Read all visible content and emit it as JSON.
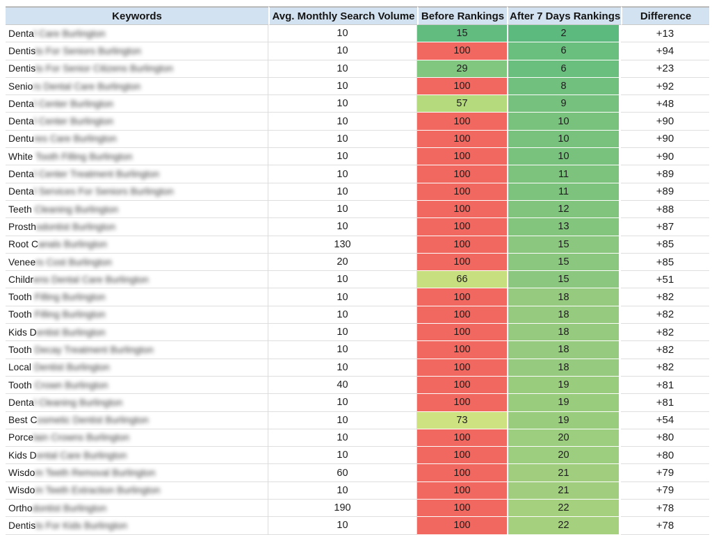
{
  "header": {
    "columns": [
      "Keywords",
      "Avg. Monthly Search Volume",
      "Before Rankings",
      "After 7 Days Rankings",
      "Difference"
    ]
  },
  "colors": {
    "header_bg": "#d3e2f0",
    "gridline": "#dedede",
    "ranking_red": "#f0685f",
    "ranking_green_strong": "#5cba7e",
    "ranking_green_light": "#a5d07e",
    "ranking_yellow_green": "#cfe282"
  },
  "table": {
    "rows": [
      {
        "keyword_visible": "Denta",
        "keyword_blurred": "l Care Burlington",
        "volume": "10",
        "before": "15",
        "after": "2",
        "difference": "+13",
        "before_color": "#62bc80",
        "after_color": "#5cba7e"
      },
      {
        "keyword_visible": "Dentis",
        "keyword_blurred": "ts For Seniors Burlington",
        "volume": "10",
        "before": "100",
        "after": "6",
        "difference": "+94",
        "before_color": "#f0685f",
        "after_color": "#6abe7e"
      },
      {
        "keyword_visible": "Dentis",
        "keyword_blurred": "ts For Senior Citizens Burlington",
        "volume": "10",
        "before": "29",
        "after": "6",
        "difference": "+23",
        "before_color": "#82c77f",
        "after_color": "#6abe7e"
      },
      {
        "keyword_visible": "Senio",
        "keyword_blurred": "rs Dental Care Burlington",
        "volume": "10",
        "before": "100",
        "after": "8",
        "difference": "+92",
        "before_color": "#f0685f",
        "after_color": "#72c07e"
      },
      {
        "keyword_visible": "Denta",
        "keyword_blurred": "l Center Burlington",
        "volume": "10",
        "before": "57",
        "after": "9",
        "difference": "+48",
        "before_color": "#b5d97d",
        "after_color": "#76c17e"
      },
      {
        "keyword_visible": "Denta",
        "keyword_blurred": "l Center Burlington",
        "volume": "10",
        "before": "100",
        "after": "10",
        "difference": "+90",
        "before_color": "#f0685f",
        "after_color": "#79c27e"
      },
      {
        "keyword_visible": "Dentu",
        "keyword_blurred": "res Care Burlington",
        "volume": "10",
        "before": "100",
        "after": "10",
        "difference": "+90",
        "before_color": "#f0685f",
        "after_color": "#79c27e"
      },
      {
        "keyword_visible": "White",
        "keyword_blurred": " Tooth Filling Burlington",
        "volume": "10",
        "before": "100",
        "after": "10",
        "difference": "+90",
        "before_color": "#f0685f",
        "after_color": "#79c27e"
      },
      {
        "keyword_visible": "Denta",
        "keyword_blurred": "l Center Treatment Burlington",
        "volume": "10",
        "before": "100",
        "after": "11",
        "difference": "+89",
        "before_color": "#f0685f",
        "after_color": "#7dc37e"
      },
      {
        "keyword_visible": "Denta",
        "keyword_blurred": "l Services For Seniors Burlington",
        "volume": "10",
        "before": "100",
        "after": "11",
        "difference": "+89",
        "before_color": "#f0685f",
        "after_color": "#7dc37e"
      },
      {
        "keyword_visible": "Teeth",
        "keyword_blurred": " Cleaning Burlington",
        "volume": "10",
        "before": "100",
        "after": "12",
        "difference": "+88",
        "before_color": "#f0685f",
        "after_color": "#80c47e"
      },
      {
        "keyword_visible": "Prosth",
        "keyword_blurred": "odontist Burlington",
        "volume": "10",
        "before": "100",
        "after": "13",
        "difference": "+87",
        "before_color": "#f0685f",
        "after_color": "#84c57e"
      },
      {
        "keyword_visible": "Root C",
        "keyword_blurred": "anals Burlington",
        "volume": "130",
        "before": "100",
        "after": "15",
        "difference": "+85",
        "before_color": "#f0685f",
        "after_color": "#8bc77e"
      },
      {
        "keyword_visible": "Venee",
        "keyword_blurred": "rs Cost Burlington",
        "volume": "20",
        "before": "100",
        "after": "15",
        "difference": "+85",
        "before_color": "#f0685f",
        "after_color": "#8bc77e"
      },
      {
        "keyword_visible": "Childr",
        "keyword_blurred": "ens Dental Care Burlington",
        "volume": "10",
        "before": "66",
        "after": "15",
        "difference": "+51",
        "before_color": "#c8df80",
        "after_color": "#8bc77e"
      },
      {
        "keyword_visible": "Tooth",
        "keyword_blurred": " Filling Burlington",
        "volume": "10",
        "before": "100",
        "after": "18",
        "difference": "+82",
        "before_color": "#f0685f",
        "after_color": "#96ca7e"
      },
      {
        "keyword_visible": "Tooth",
        "keyword_blurred": " Filling Burlington",
        "volume": "10",
        "before": "100",
        "after": "18",
        "difference": "+82",
        "before_color": "#f0685f",
        "after_color": "#96ca7e"
      },
      {
        "keyword_visible": "Kids D",
        "keyword_blurred": "entist Burlington",
        "volume": "10",
        "before": "100",
        "after": "18",
        "difference": "+82",
        "before_color": "#f0685f",
        "after_color": "#96ca7e"
      },
      {
        "keyword_visible": "Tooth",
        "keyword_blurred": " Decay Treatment Burlington",
        "volume": "10",
        "before": "100",
        "after": "18",
        "difference": "+82",
        "before_color": "#f0685f",
        "after_color": "#96ca7e"
      },
      {
        "keyword_visible": "Local",
        "keyword_blurred": " Dentist Burlington",
        "volume": "10",
        "before": "100",
        "after": "18",
        "difference": "+82",
        "before_color": "#f0685f",
        "after_color": "#96ca7e"
      },
      {
        "keyword_visible": "Tooth",
        "keyword_blurred": " Crown Burlington",
        "volume": "40",
        "before": "100",
        "after": "19",
        "difference": "+81",
        "before_color": "#f0685f",
        "after_color": "#9acc7e"
      },
      {
        "keyword_visible": "Denta",
        "keyword_blurred": "l Cleaning Burlington",
        "volume": "10",
        "before": "100",
        "after": "19",
        "difference": "+81",
        "before_color": "#f0685f",
        "after_color": "#9acc7e"
      },
      {
        "keyword_visible": "Best C",
        "keyword_blurred": "osmetic Dentist Burlington",
        "volume": "10",
        "before": "73",
        "after": "19",
        "difference": "+54",
        "before_color": "#cfe282",
        "after_color": "#9acc7e"
      },
      {
        "keyword_visible": "Porce",
        "keyword_blurred": "lain Crowns Burlington",
        "volume": "10",
        "before": "100",
        "after": "20",
        "difference": "+80",
        "before_color": "#f0685f",
        "after_color": "#9dcd7e"
      },
      {
        "keyword_visible": "Kids D",
        "keyword_blurred": "ental Care Burlington",
        "volume": "10",
        "before": "100",
        "after": "20",
        "difference": "+80",
        "before_color": "#f0685f",
        "after_color": "#9dcd7e"
      },
      {
        "keyword_visible": "Wisdo",
        "keyword_blurred": "m Teeth Removal Burlington",
        "volume": "60",
        "before": "100",
        "after": "21",
        "difference": "+79",
        "before_color": "#f0685f",
        "after_color": "#a1ce7e"
      },
      {
        "keyword_visible": "Wisdo",
        "keyword_blurred": "m Teeth Extraction Burlington",
        "volume": "10",
        "before": "100",
        "after": "21",
        "difference": "+79",
        "before_color": "#f0685f",
        "after_color": "#a1ce7e"
      },
      {
        "keyword_visible": "Ortho",
        "keyword_blurred": "dontist Burlington",
        "volume": "190",
        "before": "100",
        "after": "22",
        "difference": "+78",
        "before_color": "#f0685f",
        "after_color": "#a5d07e"
      },
      {
        "keyword_visible": "Dentis",
        "keyword_blurred": "ts For Kids Burlington",
        "volume": "10",
        "before": "100",
        "after": "22",
        "difference": "+78",
        "before_color": "#f0685f",
        "after_color": "#a5d07e"
      }
    ]
  }
}
